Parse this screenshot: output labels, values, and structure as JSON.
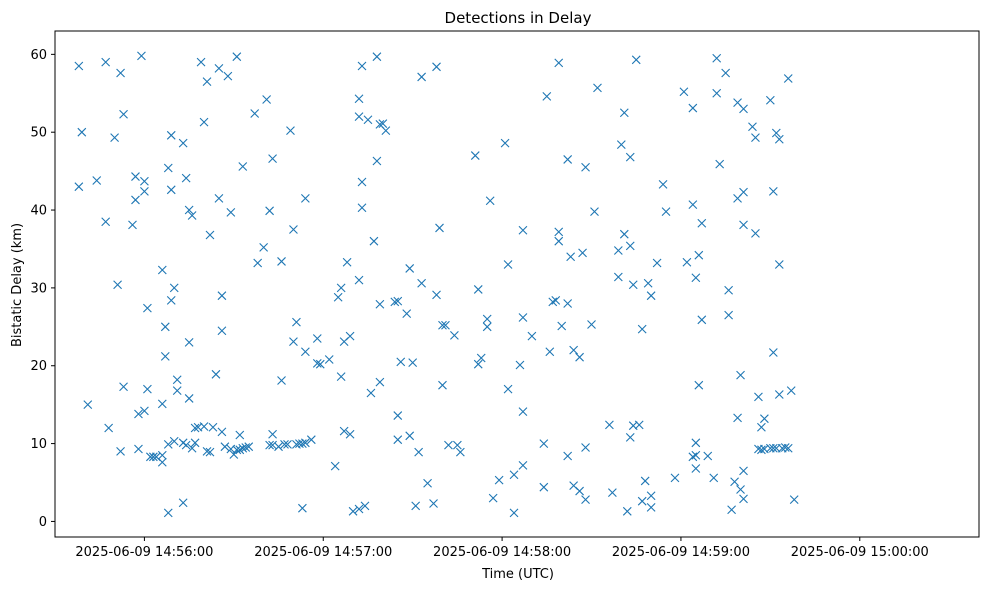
{
  "chart_data": {
    "type": "scatter",
    "title": "Detections in Delay",
    "xlabel": "Time (UTC)",
    "ylabel": "Bistatic Delay (km)",
    "marker": "x",
    "color": "#1f77b4",
    "grid": false,
    "legend": "none",
    "x_ticks": [
      "2025-06-09 14:56:00",
      "2025-06-09 14:57:00",
      "2025-06-09 14:58:00",
      "2025-06-09 14:59:00",
      "2025-06-09 15:00:00"
    ],
    "x_unit": "seconds after 2025-06-09 14:55:00 UTC",
    "xlim": [
      30,
      340
    ],
    "y_ticks": [
      0,
      10,
      20,
      30,
      40,
      50,
      60
    ],
    "ylim": [
      -2,
      63
    ],
    "series": [
      {
        "points": [
          [
            38,
            58.5
          ],
          [
            38,
            43
          ],
          [
            39,
            50
          ],
          [
            41,
            15
          ],
          [
            44,
            43.8
          ],
          [
            47,
            38.5
          ],
          [
            47,
            59
          ],
          [
            48,
            12
          ],
          [
            50,
            49.3
          ],
          [
            51,
            30.4
          ],
          [
            52,
            57.6
          ],
          [
            52,
            9
          ],
          [
            53,
            52.3
          ],
          [
            53,
            17.3
          ],
          [
            56,
            38.1
          ],
          [
            57,
            44.3
          ],
          [
            57,
            41.3
          ],
          [
            58,
            13.8
          ],
          [
            58,
            9.3
          ],
          [
            59,
            59.8
          ],
          [
            60,
            43.7
          ],
          [
            60,
            42.4
          ],
          [
            60,
            14.2
          ],
          [
            61,
            27.4
          ],
          [
            61,
            17
          ],
          [
            62,
            8.3
          ],
          [
            63,
            8.3
          ],
          [
            64,
            8.3
          ],
          [
            66,
            32.3
          ],
          [
            66,
            8.5
          ],
          [
            66,
            7.6
          ],
          [
            66,
            15.1
          ],
          [
            67,
            25
          ],
          [
            67,
            21.2
          ],
          [
            68,
            45.4
          ],
          [
            68,
            9.9
          ],
          [
            68,
            1.1
          ],
          [
            69,
            42.6
          ],
          [
            69,
            28.4
          ],
          [
            69,
            49.6
          ],
          [
            70,
            10.3
          ],
          [
            70,
            30
          ],
          [
            71,
            16.8
          ],
          [
            71,
            18.2
          ],
          [
            73,
            48.6
          ],
          [
            73,
            10.1
          ],
          [
            73,
            2.4
          ],
          [
            74,
            9.8
          ],
          [
            74,
            44.1
          ],
          [
            75,
            40
          ],
          [
            75,
            15.8
          ],
          [
            75,
            23
          ],
          [
            76,
            39.3
          ],
          [
            76,
            9.4
          ],
          [
            77,
            10.1
          ],
          [
            77,
            12
          ],
          [
            78,
            12.1
          ],
          [
            79,
            59
          ],
          [
            80,
            51.3
          ],
          [
            80,
            12.2
          ],
          [
            81,
            56.5
          ],
          [
            81,
            9
          ],
          [
            82,
            36.8
          ],
          [
            82,
            8.9
          ],
          [
            83,
            12.1
          ],
          [
            84,
            18.9
          ],
          [
            85,
            41.5
          ],
          [
            85,
            58.2
          ],
          [
            86,
            29
          ],
          [
            86,
            24.5
          ],
          [
            86,
            11.5
          ],
          [
            87,
            9.6
          ],
          [
            88,
            57.2
          ],
          [
            89,
            39.7
          ],
          [
            89,
            9.3
          ],
          [
            90,
            8.6
          ],
          [
            91,
            9.2
          ],
          [
            91,
            59.7
          ],
          [
            92,
            9.2
          ],
          [
            92,
            11.1
          ],
          [
            93,
            9.4
          ],
          [
            93,
            45.6
          ],
          [
            94,
            9.5
          ],
          [
            95,
            9.6
          ],
          [
            97,
            52.4
          ],
          [
            98,
            33.2
          ],
          [
            100,
            35.2
          ],
          [
            101,
            54.2
          ],
          [
            102,
            39.9
          ],
          [
            102,
            9.8
          ],
          [
            103,
            46.6
          ],
          [
            103,
            11.2
          ],
          [
            103,
            9.8
          ],
          [
            105,
            9.6
          ],
          [
            106,
            33.4
          ],
          [
            106,
            18.1
          ],
          [
            107,
            9.9
          ],
          [
            108,
            9.9
          ],
          [
            109,
            50.2
          ],
          [
            110,
            37.5
          ],
          [
            110,
            23.1
          ],
          [
            111,
            25.6
          ],
          [
            111,
            9.9
          ],
          [
            112,
            10
          ],
          [
            113,
            10
          ],
          [
            113,
            1.7
          ],
          [
            114,
            41.5
          ],
          [
            114,
            21.8
          ],
          [
            114,
            10.1
          ],
          [
            116,
            10.5
          ],
          [
            118,
            23.5
          ],
          [
            118,
            20.3
          ],
          [
            119,
            20.2
          ],
          [
            122,
            20.8
          ],
          [
            124,
            7.1
          ],
          [
            125,
            28.8
          ],
          [
            126,
            18.6
          ],
          [
            126,
            30
          ],
          [
            127,
            23.1
          ],
          [
            127,
            11.6
          ],
          [
            128,
            33.3
          ],
          [
            129,
            11.2
          ],
          [
            129,
            23.8
          ],
          [
            130,
            1.3
          ],
          [
            132,
            52
          ],
          [
            132,
            31
          ],
          [
            132,
            54.3
          ],
          [
            132,
            1.6
          ],
          [
            133,
            58.5
          ],
          [
            133,
            43.6
          ],
          [
            133,
            40.3
          ],
          [
            134,
            2
          ],
          [
            135,
            51.6
          ],
          [
            136,
            16.5
          ],
          [
            137,
            36
          ],
          [
            138,
            59.7
          ],
          [
            138,
            46.3
          ],
          [
            139,
            17.9
          ],
          [
            139,
            27.9
          ],
          [
            139,
            51
          ],
          [
            140,
            51.1
          ],
          [
            141,
            50.2
          ],
          [
            144,
            28.2
          ],
          [
            145,
            28.3
          ],
          [
            145,
            13.6
          ],
          [
            145,
            10.5
          ],
          [
            146,
            20.5
          ],
          [
            148,
            26.7
          ],
          [
            149,
            32.5
          ],
          [
            149,
            11
          ],
          [
            150,
            20.4
          ],
          [
            151,
            2
          ],
          [
            152,
            8.9
          ],
          [
            153,
            57.1
          ],
          [
            153,
            30.6
          ],
          [
            155,
            4.9
          ],
          [
            157,
            2.3
          ],
          [
            158,
            58.4
          ],
          [
            158,
            29.1
          ],
          [
            159,
            37.7
          ],
          [
            160,
            17.5
          ],
          [
            160,
            25.2
          ],
          [
            161,
            25.2
          ],
          [
            162,
            9.8
          ],
          [
            164,
            23.9
          ],
          [
            165,
            9.8
          ],
          [
            166,
            8.9
          ],
          [
            171,
            47
          ],
          [
            172,
            29.8
          ],
          [
            172,
            20.2
          ],
          [
            173,
            21
          ],
          [
            175,
            25
          ],
          [
            175,
            26
          ],
          [
            176,
            41.2
          ],
          [
            177,
            3
          ],
          [
            179,
            5.3
          ],
          [
            181,
            48.6
          ],
          [
            182,
            33
          ],
          [
            182,
            17
          ],
          [
            184,
            6
          ],
          [
            184,
            1.1
          ],
          [
            186,
            20.1
          ],
          [
            187,
            26.2
          ],
          [
            187,
            37.4
          ],
          [
            187,
            14.1
          ],
          [
            187,
            7.2
          ],
          [
            190,
            23.8
          ],
          [
            194,
            10
          ],
          [
            194,
            4.4
          ],
          [
            195,
            54.6
          ],
          [
            196,
            21.8
          ],
          [
            197,
            28.2
          ],
          [
            198,
            28.4
          ],
          [
            199,
            58.9
          ],
          [
            199,
            37.2
          ],
          [
            199,
            36
          ],
          [
            200,
            25.1
          ],
          [
            202,
            46.5
          ],
          [
            202,
            28
          ],
          [
            202,
            8.4
          ],
          [
            203,
            34
          ],
          [
            204,
            4.6
          ],
          [
            204,
            22
          ],
          [
            206,
            21.1
          ],
          [
            206,
            3.9
          ],
          [
            207,
            34.5
          ],
          [
            208,
            45.5
          ],
          [
            208,
            9.5
          ],
          [
            208,
            2.8
          ],
          [
            210,
            25.3
          ],
          [
            211,
            39.8
          ],
          [
            212,
            55.7
          ],
          [
            216,
            12.4
          ],
          [
            217,
            3.7
          ],
          [
            219,
            31.4
          ],
          [
            219,
            34.8
          ],
          [
            220,
            48.4
          ],
          [
            221,
            52.5
          ],
          [
            221,
            36.9
          ],
          [
            222,
            1.3
          ],
          [
            223,
            46.8
          ],
          [
            223,
            35.4
          ],
          [
            223,
            10.8
          ],
          [
            224,
            30.4
          ],
          [
            224,
            12.3
          ],
          [
            225,
            59.3
          ],
          [
            226,
            12.4
          ],
          [
            227,
            2.6
          ],
          [
            227,
            24.7
          ],
          [
            228,
            5.2
          ],
          [
            229,
            30.6
          ],
          [
            230,
            29
          ],
          [
            230,
            3.3
          ],
          [
            230,
            1.8
          ],
          [
            232,
            33.2
          ],
          [
            234,
            43.3
          ],
          [
            235,
            39.8
          ],
          [
            238,
            5.6
          ],
          [
            241,
            55.2
          ],
          [
            242,
            33.3
          ],
          [
            244,
            53.1
          ],
          [
            244,
            40.7
          ],
          [
            244,
            8.3
          ],
          [
            245,
            8.5
          ],
          [
            245,
            6.8
          ],
          [
            245,
            31.3
          ],
          [
            245,
            10.1
          ],
          [
            246,
            17.5
          ],
          [
            246,
            34.2
          ],
          [
            247,
            38.3
          ],
          [
            247,
            25.9
          ],
          [
            249,
            8.4
          ],
          [
            251,
            5.6
          ],
          [
            252,
            59.5
          ],
          [
            252,
            55
          ],
          [
            253,
            45.9
          ],
          [
            255,
            57.6
          ],
          [
            256,
            26.5
          ],
          [
            256,
            29.7
          ],
          [
            257,
            1.5
          ],
          [
            258,
            5.1
          ],
          [
            259,
            53.8
          ],
          [
            259,
            41.5
          ],
          [
            259,
            13.3
          ],
          [
            260,
            18.8
          ],
          [
            260,
            4.1
          ],
          [
            261,
            53
          ],
          [
            261,
            42.3
          ],
          [
            261,
            38.1
          ],
          [
            261,
            6.5
          ],
          [
            261,
            2.9
          ],
          [
            264,
            50.7
          ],
          [
            265,
            49.3
          ],
          [
            265,
            37
          ],
          [
            266,
            16
          ],
          [
            266,
            9.3
          ],
          [
            267,
            12.1
          ],
          [
            267,
            9.2
          ],
          [
            268,
            13.2
          ],
          [
            268,
            9.3
          ],
          [
            270,
            54.1
          ],
          [
            270,
            9.4
          ],
          [
            271,
            21.7
          ],
          [
            271,
            42.4
          ],
          [
            271,
            9.4
          ],
          [
            272,
            49.9
          ],
          [
            272,
            9.4
          ],
          [
            273,
            49.1
          ],
          [
            273,
            16.3
          ],
          [
            273,
            33
          ],
          [
            274,
            9.4
          ],
          [
            275,
            9.5
          ],
          [
            276,
            9.4
          ],
          [
            276,
            56.9
          ],
          [
            277,
            16.8
          ],
          [
            278,
            2.8
          ]
        ]
      }
    ]
  }
}
